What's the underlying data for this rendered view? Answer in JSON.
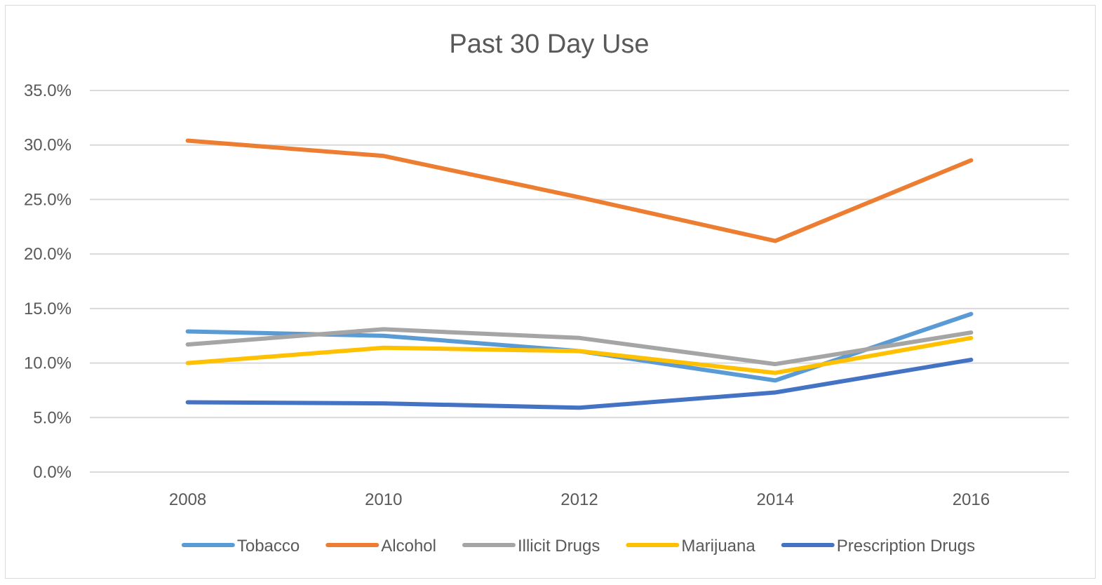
{
  "chart_data": {
    "type": "line",
    "title": "Past 30 Day Use",
    "xlabel": "",
    "ylabel": "",
    "categories": [
      "2008",
      "2010",
      "2012",
      "2014",
      "2016"
    ],
    "y_ticks": [
      "0.0%",
      "5.0%",
      "10.0%",
      "15.0%",
      "20.0%",
      "25.0%",
      "30.0%",
      "35.0%"
    ],
    "ylim": [
      0,
      35
    ],
    "grid": true,
    "legend_position": "bottom",
    "series": [
      {
        "name": "Tobacco",
        "color": "#5b9bd5",
        "values": [
          12.9,
          12.5,
          11.1,
          8.4,
          14.5
        ]
      },
      {
        "name": "Alcohol",
        "color": "#ed7d31",
        "values": [
          30.4,
          29.0,
          25.2,
          21.2,
          28.6
        ]
      },
      {
        "name": "Illicit Drugs",
        "color": "#a5a5a5",
        "values": [
          11.7,
          13.1,
          12.3,
          9.9,
          12.8
        ]
      },
      {
        "name": "Marijuana",
        "color": "#ffc000",
        "values": [
          10.0,
          11.4,
          11.1,
          9.1,
          12.3
        ]
      },
      {
        "name": "Prescription Drugs",
        "color": "#4472c4",
        "values": [
          6.4,
          6.3,
          5.9,
          7.3,
          10.3
        ]
      }
    ]
  }
}
